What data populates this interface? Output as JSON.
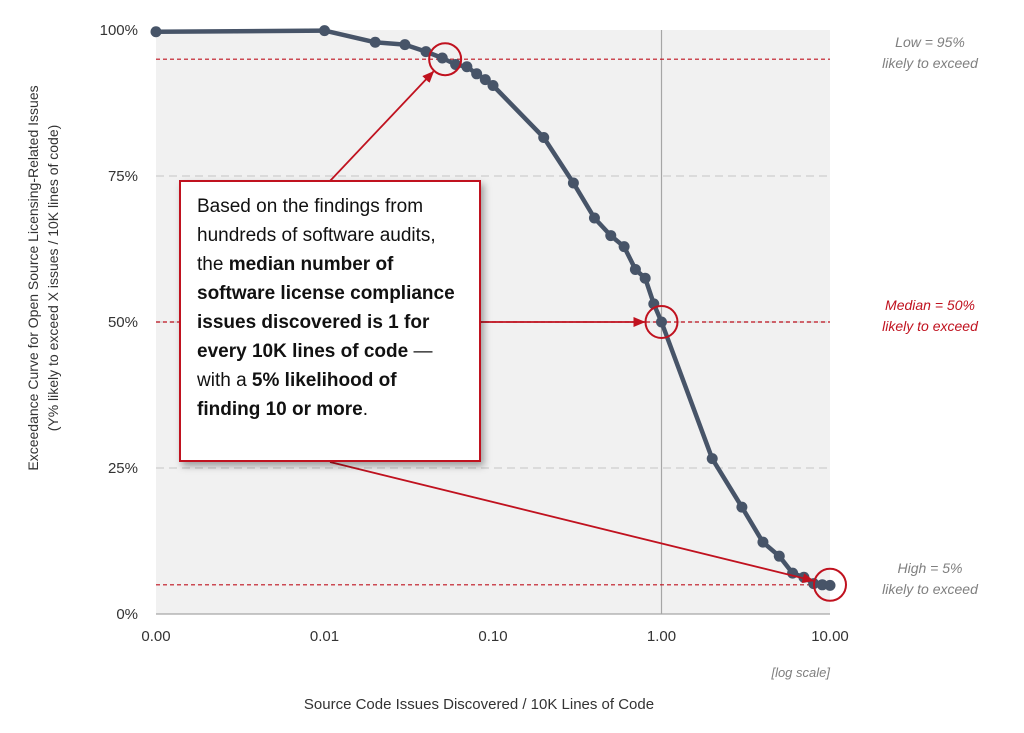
{
  "chart_data": {
    "type": "line",
    "x_scale": "log",
    "xlabel": "Source Code Issues Discovered / 10K Lines of Code",
    "ylabel_line1": "Exceedance Curve for Open Source Licensing-Related Issues",
    "ylabel_line2": "(Y% likely to exceed X issues / 10K lines of code)",
    "x_scale_note": "[log scale]",
    "ylim": [
      0,
      100
    ],
    "y_ticks": [
      {
        "value": 0,
        "label": "0%"
      },
      {
        "value": 25,
        "label": "25%"
      },
      {
        "value": 50,
        "label": "50%"
      },
      {
        "value": 75,
        "label": "75%"
      },
      {
        "value": 100,
        "label": "100%"
      }
    ],
    "x_ticks": [
      {
        "value": 0.001,
        "label": "0.00"
      },
      {
        "value": 0.01,
        "label": "0.01"
      },
      {
        "value": 0.1,
        "label": "0.10"
      },
      {
        "value": 1,
        "label": "1.00"
      },
      {
        "value": 10,
        "label": "10.00"
      }
    ],
    "series": [
      {
        "name": "Exceedance curve",
        "color": "#475468",
        "points": [
          {
            "x": 0.001,
            "y": 99.7
          },
          {
            "x": 0.01,
            "y": 99.9
          },
          {
            "x": 0.02,
            "y": 97.9
          },
          {
            "x": 0.03,
            "y": 97.5
          },
          {
            "x": 0.04,
            "y": 96.3
          },
          {
            "x": 0.05,
            "y": 95.2
          },
          {
            "x": 0.06,
            "y": 94.1
          },
          {
            "x": 0.07,
            "y": 93.7
          },
          {
            "x": 0.08,
            "y": 92.5
          },
          {
            "x": 0.09,
            "y": 91.5
          },
          {
            "x": 0.1,
            "y": 90.5
          },
          {
            "x": 0.2,
            "y": 81.6
          },
          {
            "x": 0.3,
            "y": 73.8
          },
          {
            "x": 0.4,
            "y": 67.8
          },
          {
            "x": 0.5,
            "y": 64.8
          },
          {
            "x": 0.6,
            "y": 62.9
          },
          {
            "x": 0.7,
            "y": 59.0
          },
          {
            "x": 0.8,
            "y": 57.5
          },
          {
            "x": 0.9,
            "y": 53.1
          },
          {
            "x": 1.0,
            "y": 50.0
          },
          {
            "x": 2.0,
            "y": 26.6
          },
          {
            "x": 3.0,
            "y": 18.3
          },
          {
            "x": 4.0,
            "y": 12.3
          },
          {
            "x": 5.0,
            "y": 9.9
          },
          {
            "x": 6.0,
            "y": 7.0
          },
          {
            "x": 7.0,
            "y": 6.3
          },
          {
            "x": 8.0,
            "y": 5.2
          },
          {
            "x": 9.0,
            "y": 5.0
          },
          {
            "x": 10.0,
            "y": 4.9
          }
        ]
      }
    ],
    "reference_lines": [
      {
        "y": 95,
        "line1": "Low = 95%",
        "line2": "likely to exceed",
        "color": "#c0121f",
        "label_color": "#7f7f7f",
        "marker_x": 0.052
      },
      {
        "y": 50,
        "line1": "Median = 50%",
        "line2": "likely to exceed",
        "color": "#c0121f",
        "label_color": "#c0121f",
        "marker_x": 1.0
      },
      {
        "y": 5,
        "line1": "High = 5%",
        "line2": "likely to exceed",
        "color": "#c0121f",
        "label_color": "#7f7f7f",
        "marker_x": 10.0
      }
    ],
    "vertical_line_x": 1.0,
    "colors": {
      "plot_bg": "#f1f1f1",
      "grid": "#d4d4d4",
      "axis": "#a6a6a6",
      "accent_red": "#c0121f",
      "line": "#475468"
    }
  },
  "callout": {
    "part1": "Based on the findings from hundreds of software audits, the ",
    "bold1": "median number of software license compliance issues discovered is 1 for every 10K lines of code",
    "part2": " — with a ",
    "bold2": "5% likelihood of finding 10 or more",
    "part3": "."
  }
}
